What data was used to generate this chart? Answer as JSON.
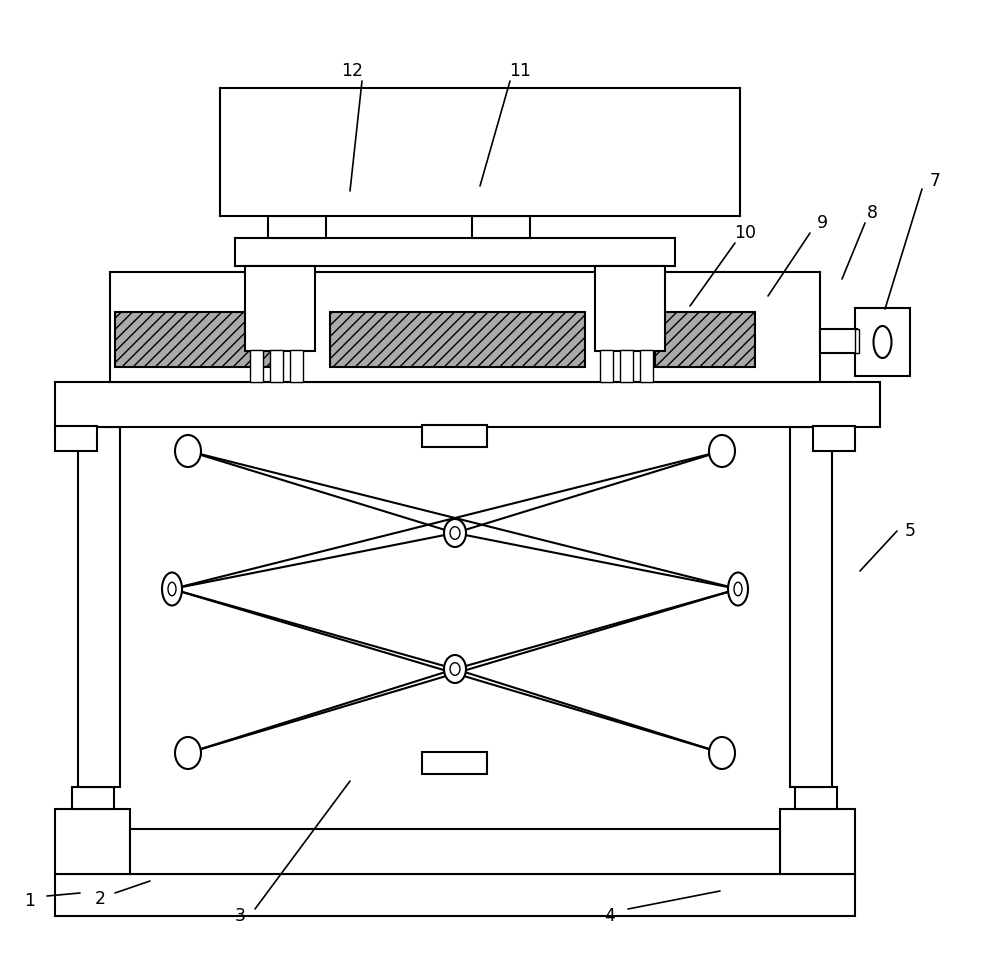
{
  "bg_color": "#ffffff",
  "line_color": "#000000",
  "lw": 1.5,
  "lw_thin": 1.0,
  "gray_fill": "#aaaaaa",
  "white": "#ffffff",
  "black": "#000000"
}
